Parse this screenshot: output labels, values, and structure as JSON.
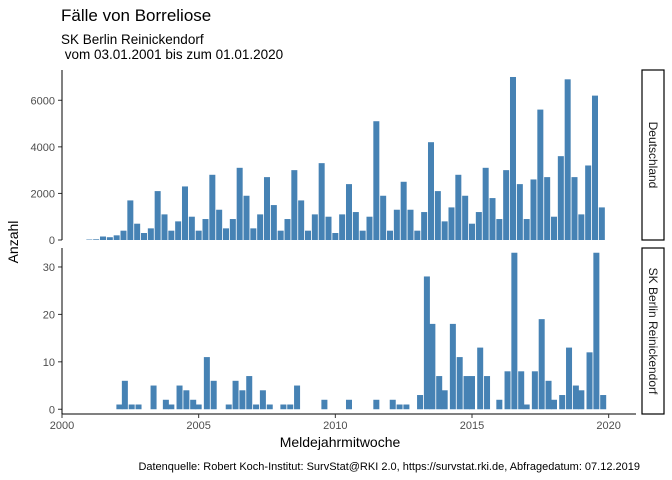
{
  "chart_data": {
    "type": "bar",
    "title": "Fälle von Borreliose",
    "subtitle_line1": "SK Berlin Reinickendorf",
    "subtitle_line2": " vom 03.01.2001 bis zum 01.01.2020",
    "xlabel": "Meldejahrmitwoche",
    "ylabel": "Anzahl",
    "caption": "Datenquelle: Robert Koch-Institut: SurvStat@RKI 2.0, https://survstat.rki.de, Abfragedatum: 07.12.2019",
    "bar_color": "#4682B4",
    "grid": false,
    "xlim": [
      2000,
      2021
    ],
    "x_ticks": [
      2000,
      2005,
      2010,
      2015,
      2020
    ],
    "x_tick_labels": [
      "2000",
      "2005",
      "2010",
      "2015",
      "2020"
    ],
    "bar_width_years": 0.22,
    "panels": [
      {
        "strip_label": "Deutschland",
        "ylim": [
          0,
          7300
        ],
        "y_ticks": [
          0,
          2000,
          4000,
          6000
        ],
        "y_tick_labels": [
          "0",
          "2000",
          "4000",
          "6000"
        ],
        "x": [
          2001.0,
          2001.25,
          2001.5,
          2001.75,
          2002.0,
          2002.25,
          2002.5,
          2002.75,
          2003.0,
          2003.25,
          2003.5,
          2003.75,
          2004.0,
          2004.25,
          2004.5,
          2004.75,
          2005.0,
          2005.25,
          2005.5,
          2005.75,
          2006.0,
          2006.25,
          2006.5,
          2006.75,
          2007.0,
          2007.25,
          2007.5,
          2007.75,
          2008.0,
          2008.25,
          2008.5,
          2008.75,
          2009.0,
          2009.25,
          2009.5,
          2009.75,
          2010.0,
          2010.25,
          2010.5,
          2010.75,
          2011.0,
          2011.25,
          2011.5,
          2011.75,
          2012.0,
          2012.25,
          2012.5,
          2012.75,
          2013.0,
          2013.25,
          2013.5,
          2013.75,
          2014.0,
          2014.25,
          2014.5,
          2014.75,
          2015.0,
          2015.25,
          2015.5,
          2015.75,
          2016.0,
          2016.25,
          2016.5,
          2016.75,
          2017.0,
          2017.25,
          2017.5,
          2017.75,
          2018.0,
          2018.25,
          2018.5,
          2018.75,
          2019.0,
          2019.25,
          2019.5,
          2019.75
        ],
        "values": [
          20,
          30,
          150,
          120,
          200,
          400,
          1700,
          700,
          300,
          500,
          2100,
          1100,
          400,
          800,
          2300,
          1000,
          400,
          900,
          2800,
          1300,
          500,
          900,
          3100,
          1900,
          500,
          1100,
          2700,
          1500,
          400,
          900,
          3000,
          1700,
          400,
          1100,
          3300,
          1000,
          300,
          1100,
          2400,
          1200,
          400,
          1000,
          5100,
          1900,
          400,
          1300,
          2500,
          1300,
          400,
          1200,
          4200,
          2100,
          800,
          1400,
          2800,
          1900,
          700,
          1200,
          3100,
          1800,
          900,
          3000,
          7000,
          2400,
          900,
          2600,
          5600,
          2700,
          1000,
          3600,
          6900,
          2700,
          1100,
          3200,
          6200,
          1400
        ]
      },
      {
        "strip_label": "SK Berlin Reinickendorf",
        "ylim": [
          -1,
          34
        ],
        "y_ticks": [
          0,
          10,
          20,
          30
        ],
        "y_tick_labels": [
          "0",
          "10",
          "20",
          "30"
        ],
        "x": [
          2002.1,
          2002.3,
          2002.55,
          2002.8,
          2003.35,
          2003.8,
          2004.0,
          2004.3,
          2004.55,
          2004.8,
          2005.0,
          2005.3,
          2005.55,
          2006.1,
          2006.35,
          2006.6,
          2006.85,
          2007.1,
          2007.35,
          2007.6,
          2008.1,
          2008.35,
          2008.6,
          2009.6,
          2010.5,
          2011.5,
          2012.1,
          2012.35,
          2012.6,
          2013.1,
          2013.35,
          2013.55,
          2013.8,
          2014.0,
          2014.3,
          2014.55,
          2014.8,
          2015.0,
          2015.3,
          2015.55,
          2016.0,
          2016.3,
          2016.55,
          2016.8,
          2017.0,
          2017.3,
          2017.55,
          2017.8,
          2018.0,
          2018.3,
          2018.55,
          2018.8,
          2019.0,
          2019.3,
          2019.55,
          2019.8
        ],
        "values": [
          1,
          6,
          1,
          1,
          5,
          2,
          1,
          5,
          4,
          2,
          1,
          11,
          6,
          1,
          6,
          4,
          7,
          1,
          4,
          1,
          1,
          1,
          5,
          2,
          2,
          2,
          2,
          1,
          1,
          3,
          28,
          18,
          7,
          4,
          18,
          11,
          7,
          7,
          13,
          7,
          2,
          8,
          33,
          8,
          1,
          8,
          19,
          6,
          2,
          3,
          13,
          5,
          4,
          12,
          33,
          3
        ]
      }
    ]
  }
}
